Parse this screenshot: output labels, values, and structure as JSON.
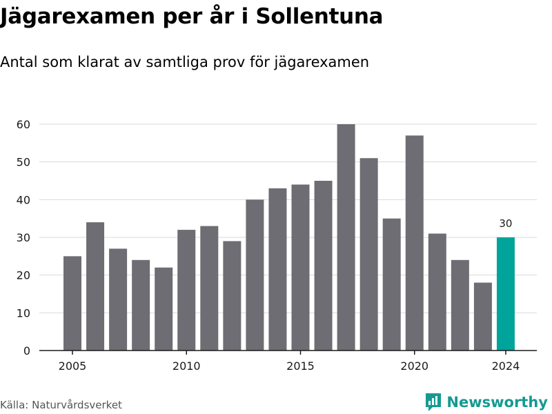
{
  "header": {
    "title": "Jägarexamen per år i Sollentuna",
    "subtitle": "Antal som klarat av samtliga prov för jägarexamen"
  },
  "footer": {
    "source": "Källa: Naturvårdsverket",
    "brand": "Newsworthy",
    "brand_icon": "newsworthy-chart-logo-icon"
  },
  "colors": {
    "bar": "#6e6d73",
    "highlight": "#00a49a",
    "grid": "#d9d9d9",
    "axis": "#1a1a1a",
    "brand": "#159a91"
  },
  "chart_data": {
    "type": "bar",
    "title": "Jägarexamen per år i Sollentuna",
    "subtitle": "Antal som klarat av samtliga prov för jägarexamen",
    "xlabel": "",
    "ylabel": "",
    "categories": [
      2005,
      2006,
      2007,
      2008,
      2009,
      2010,
      2011,
      2012,
      2013,
      2014,
      2015,
      2016,
      2017,
      2018,
      2019,
      2020,
      2021,
      2022,
      2023,
      2024
    ],
    "values": [
      25,
      34,
      27,
      24,
      22,
      32,
      33,
      29,
      40,
      43,
      44,
      45,
      60,
      51,
      35,
      57,
      31,
      24,
      18,
      30
    ],
    "x_ticks": [
      2005,
      2010,
      2015,
      2020,
      2024
    ],
    "y_ticks": [
      0,
      10,
      20,
      30,
      40,
      50,
      60
    ],
    "ylim": [
      0,
      60
    ],
    "grid": true,
    "highlight": {
      "category": 2024,
      "label": "30"
    }
  }
}
